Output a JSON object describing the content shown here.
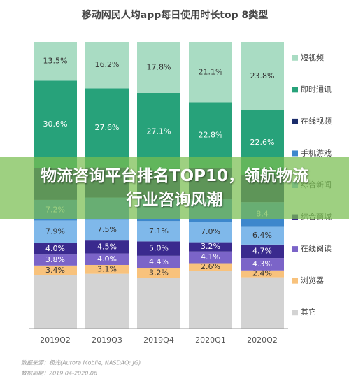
{
  "chart_data": {
    "type": "stacked_bar",
    "title": "移动网民人均app每日使用时长top 8类型",
    "categories": [
      "2019Q2",
      "2019Q3",
      "2019Q4",
      "2020Q1",
      "2020Q2"
    ],
    "ylim": [
      0,
      100
    ],
    "series": [
      {
        "name": "短视频",
        "color": "#a9dcc3",
        "values": [
          13.5,
          16.2,
          17.8,
          21.1,
          23.8
        ],
        "value_labels": [
          "13.5%",
          "16.2%",
          "17.8%",
          "21.1%",
          "23.8%"
        ]
      },
      {
        "name": "即时通讯",
        "color": "#27a27a",
        "values": [
          30.6,
          27.6,
          27.1,
          22.8,
          22.6
        ],
        "value_labels": [
          "30.6%",
          "27.6%",
          "27.1%",
          "22.8%",
          "22.6%"
        ]
      },
      {
        "name": "在线视频",
        "color": "#1b2c6b",
        "values": [
          11,
          10.5,
          10,
          11,
          9.5
        ]
      },
      {
        "name": "手机游戏",
        "color": "#3d87cc",
        "values": [
          7.2,
          7.5,
          7.6,
          8.0,
          8.4
        ],
        "value_labels": [
          "7.2%",
          null,
          null,
          null,
          "8.4"
        ]
      },
      {
        "name": "综合新闻",
        "color": "#7fb8ea",
        "values": [
          7.9,
          7.5,
          7.1,
          7.0,
          6.4
        ],
        "value_labels": [
          "7.9%",
          "7.5%",
          "7.1%",
          "7.0%",
          "6.4%"
        ]
      },
      {
        "name": "综合商城",
        "color": "#3a2a8e",
        "values": [
          4.0,
          4.5,
          5.0,
          3.2,
          4.7
        ],
        "value_labels": [
          "4.0%",
          "4.5%",
          "5.0%",
          "3.2%",
          "4.7%"
        ]
      },
      {
        "name": "在线阅读",
        "color": "#7b64c8",
        "values": [
          3.8,
          4.0,
          4.4,
          4.1,
          4.3
        ],
        "value_labels": [
          "3.8%",
          "4.0%",
          "4.4%",
          "4.1%",
          "4.3%"
        ]
      },
      {
        "name": "浏览器",
        "color": "#f8c27c",
        "values": [
          3.4,
          3.1,
          3.2,
          2.6,
          2.4
        ],
        "value_labels": [
          "3.4%",
          "3.1%",
          "3.2%",
          "2.6%",
          "2.4%"
        ]
      },
      {
        "name": "其它",
        "color": "#d3d3d3",
        "values": [
          18.6,
          19.1,
          17.8,
          20.2,
          17.9
        ]
      }
    ],
    "source": "数据来源：极光(Aurora Mobile, NASDAQ: JG)",
    "period": "数据周期：2019.04-2020.06",
    "banner": "物流咨询平台排名TOP10，领航物流行业咨询风潮"
  }
}
